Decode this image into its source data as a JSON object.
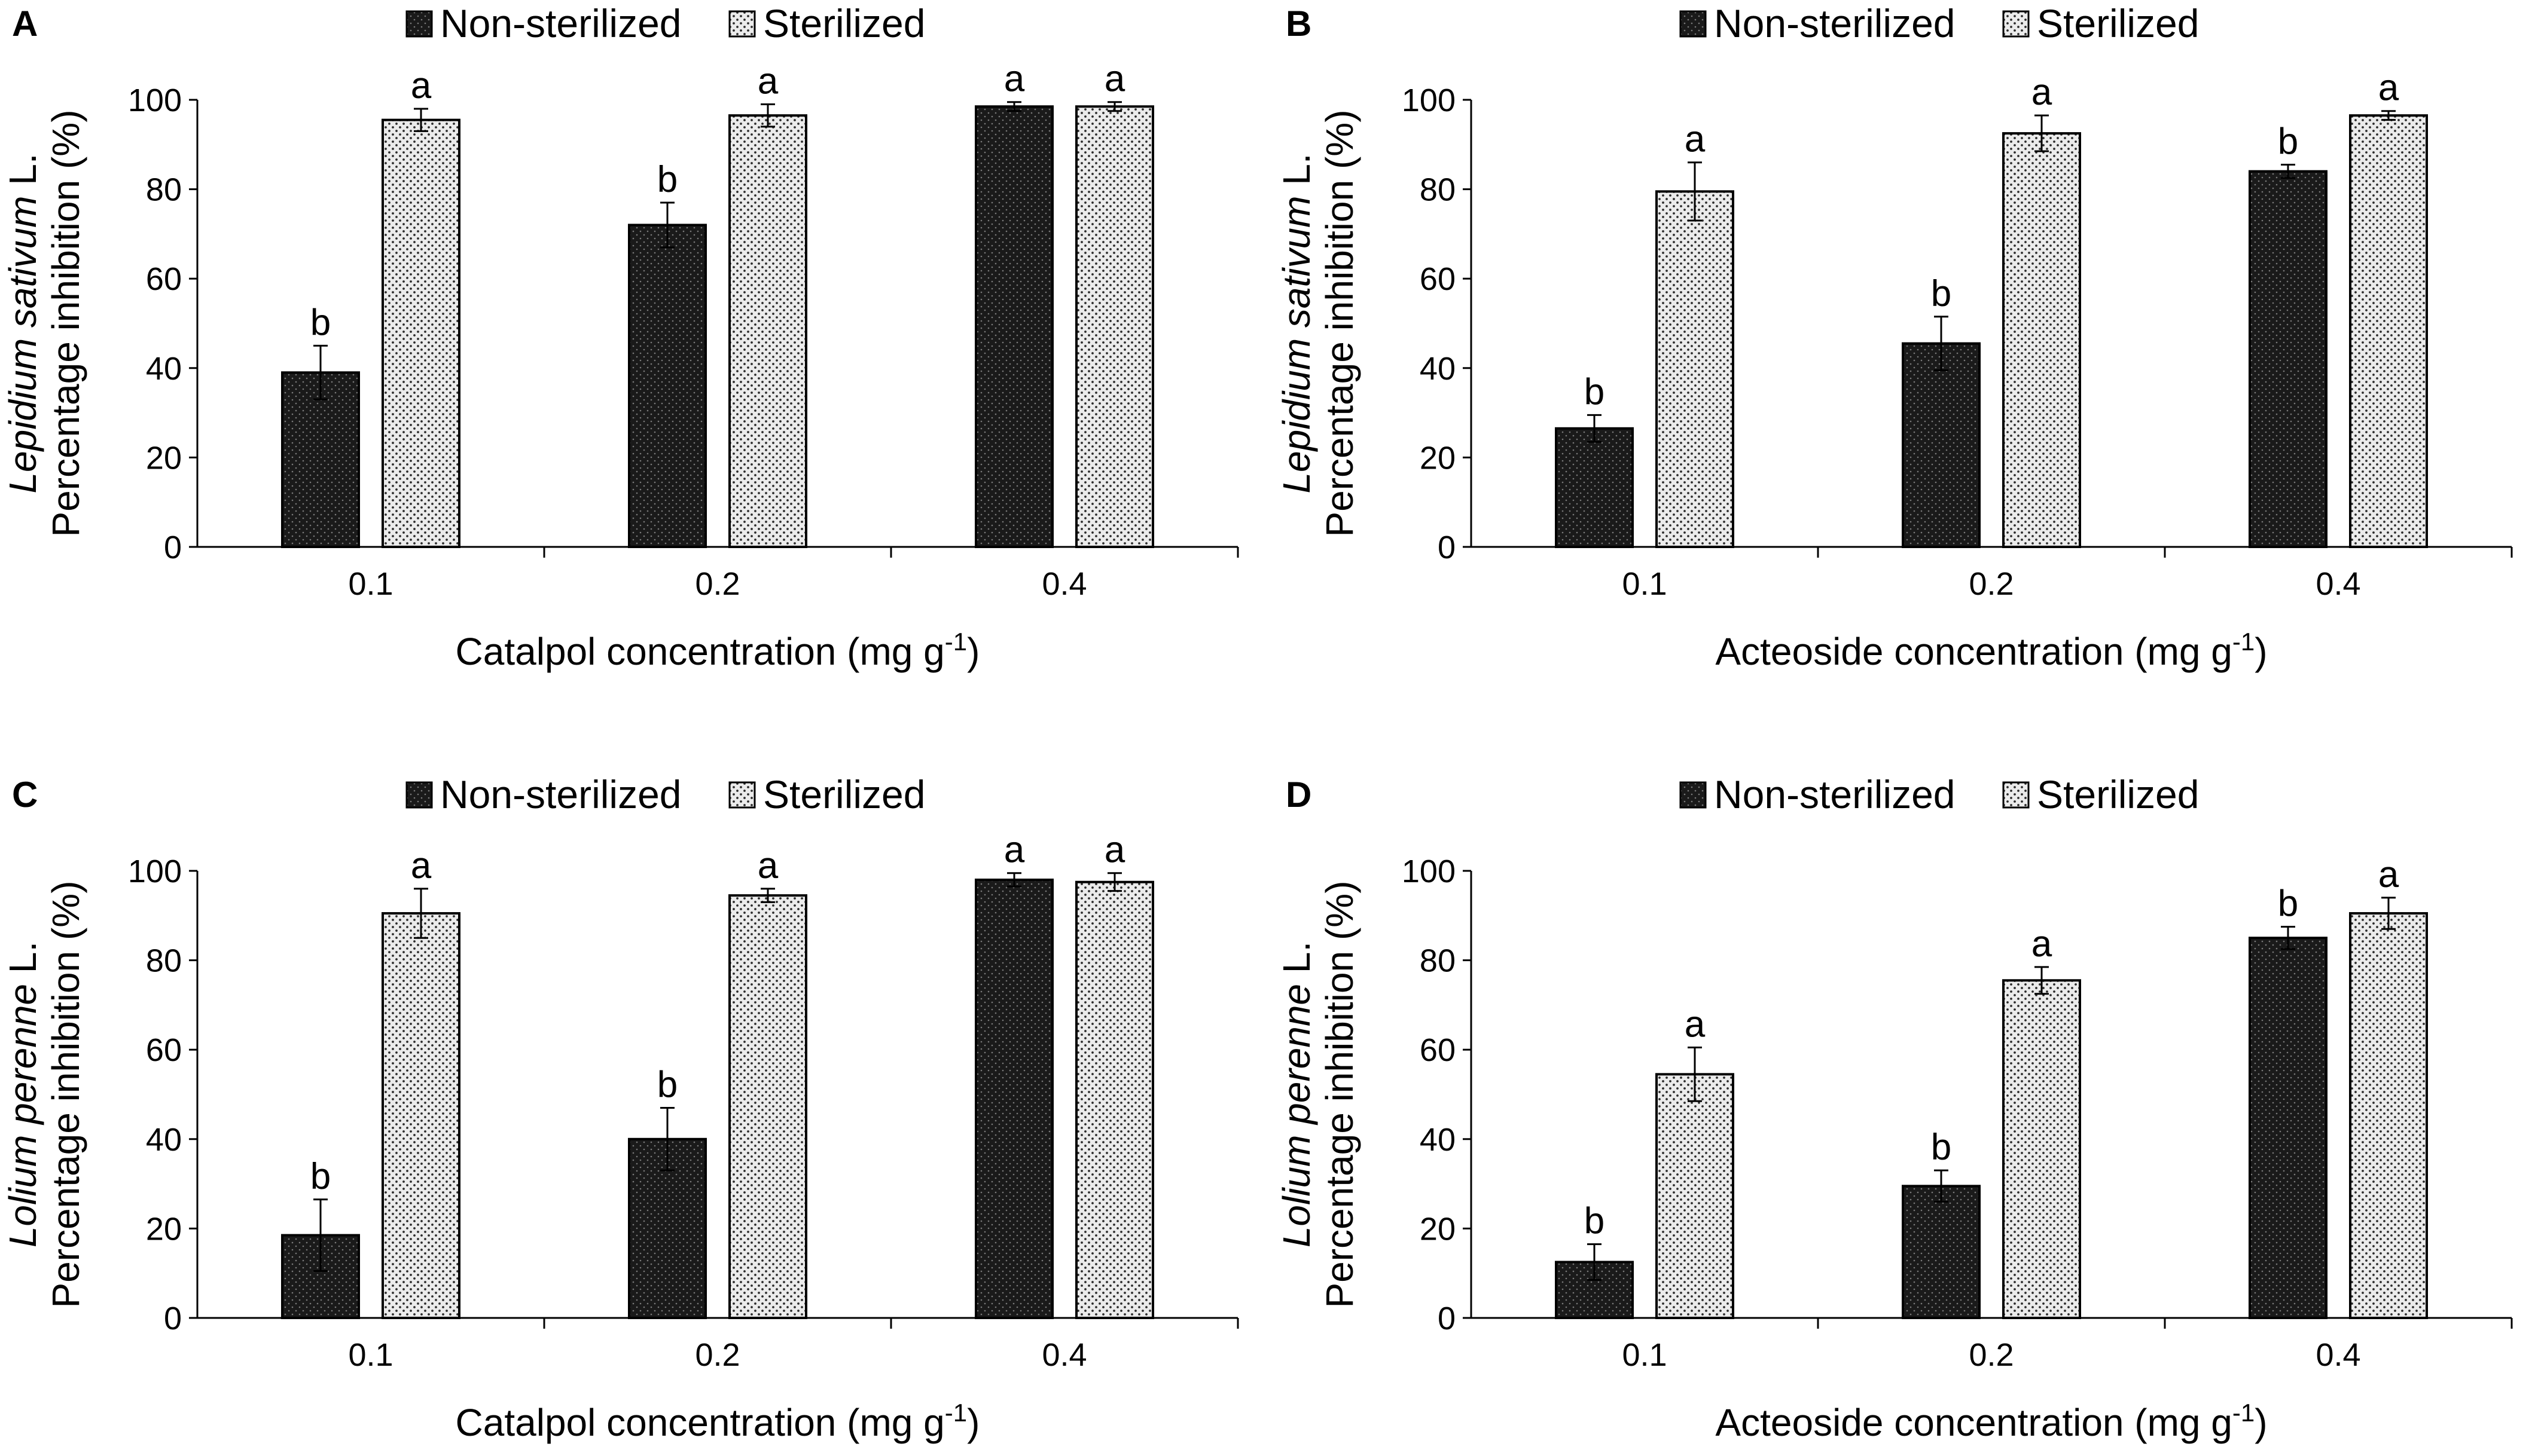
{
  "legend": {
    "non_sterilized": "Non-sterilized",
    "sterilized": "Sterilized"
  },
  "colors": {
    "non_sterilized_fill": "#1c1c1c",
    "sterilized_fill": "#e4e4e4",
    "axis": "#000000"
  },
  "chart_data": [
    {
      "panel": "A",
      "type": "bar",
      "title": "",
      "ylabel_italic": "Lepidium sativum",
      "ylabel_suffix": " L.",
      "ylabel_line2": "Percentage inhibition (%)",
      "xlabel_main": "Catalpol concentration (mg g",
      "xlabel_sup": "-1",
      "xlabel_close": ")",
      "categories": [
        "0.1",
        "0.2",
        "0.4"
      ],
      "ylim": [
        0,
        100
      ],
      "yticks": [
        "0",
        "20",
        "40",
        "60",
        "80",
        "100"
      ],
      "legend_position": "top-center",
      "series": [
        {
          "name": "Non-sterilized",
          "values": [
            39,
            72,
            98.5
          ],
          "errors": [
            6,
            5,
            1
          ],
          "letters": [
            "b",
            "b",
            "a"
          ]
        },
        {
          "name": "Sterilized",
          "values": [
            95.5,
            96.5,
            98.5
          ],
          "errors": [
            2.5,
            2.5,
            1
          ],
          "letters": [
            "a",
            "a",
            "a"
          ]
        }
      ]
    },
    {
      "panel": "B",
      "type": "bar",
      "title": "",
      "ylabel_italic": "Lepidium sativum",
      "ylabel_suffix": " L.",
      "ylabel_line2": "Percentage inhibition (%)",
      "xlabel_main": "Acteoside concentration (mg g",
      "xlabel_sup": "-1",
      "xlabel_close": ")",
      "categories": [
        "0.1",
        "0.2",
        "0.4"
      ],
      "ylim": [
        0,
        100
      ],
      "yticks": [
        "0",
        "20",
        "40",
        "60",
        "80",
        "100"
      ],
      "legend_position": "top-center",
      "series": [
        {
          "name": "Non-sterilized",
          "values": [
            26.5,
            45.5,
            84
          ],
          "errors": [
            3,
            6,
            1.5
          ],
          "letters": [
            "b",
            "b",
            "b"
          ]
        },
        {
          "name": "Sterilized",
          "values": [
            79.5,
            92.5,
            96.5
          ],
          "errors": [
            6.5,
            4,
            1
          ],
          "letters": [
            "a",
            "a",
            "a"
          ]
        }
      ]
    },
    {
      "panel": "C",
      "type": "bar",
      "title": "",
      "ylabel_italic": "Lolium perenne",
      "ylabel_suffix": " L.",
      "ylabel_line2": "Percentage inhibition (%)",
      "xlabel_main": "Catalpol concentration (mg g",
      "xlabel_sup": "-1",
      "xlabel_close": ")",
      "categories": [
        "0.1",
        "0.2",
        "0.4"
      ],
      "ylim": [
        0,
        100
      ],
      "yticks": [
        "0",
        "20",
        "40",
        "60",
        "80",
        "100"
      ],
      "legend_position": "top-center",
      "series": [
        {
          "name": "Non-sterilized",
          "values": [
            18.5,
            40,
            98
          ],
          "errors": [
            8,
            7,
            1.5
          ],
          "letters": [
            "b",
            "b",
            "a"
          ]
        },
        {
          "name": "Sterilized",
          "values": [
            90.5,
            94.5,
            97.5
          ],
          "errors": [
            5.5,
            1.5,
            2
          ],
          "letters": [
            "a",
            "a",
            "a"
          ]
        }
      ]
    },
    {
      "panel": "D",
      "type": "bar",
      "title": "",
      "ylabel_italic": "Lolium perenne",
      "ylabel_suffix": " L.",
      "ylabel_line2": "Percentage inhibition (%)",
      "xlabel_main": "Acteoside concentration (mg g",
      "xlabel_sup": "-1",
      "xlabel_close": ")",
      "categories": [
        "0.1",
        "0.2",
        "0.4"
      ],
      "ylim": [
        0,
        100
      ],
      "yticks": [
        "0",
        "20",
        "40",
        "60",
        "80",
        "100"
      ],
      "legend_position": "top-center",
      "series": [
        {
          "name": "Non-sterilized",
          "values": [
            12.5,
            29.5,
            85
          ],
          "errors": [
            4,
            3.5,
            2.5
          ],
          "letters": [
            "b",
            "b",
            "b"
          ]
        },
        {
          "name": "Sterilized",
          "values": [
            54.5,
            75.5,
            90.5
          ],
          "errors": [
            6,
            3,
            3.5
          ],
          "letters": [
            "a",
            "a",
            "a"
          ]
        }
      ]
    }
  ]
}
